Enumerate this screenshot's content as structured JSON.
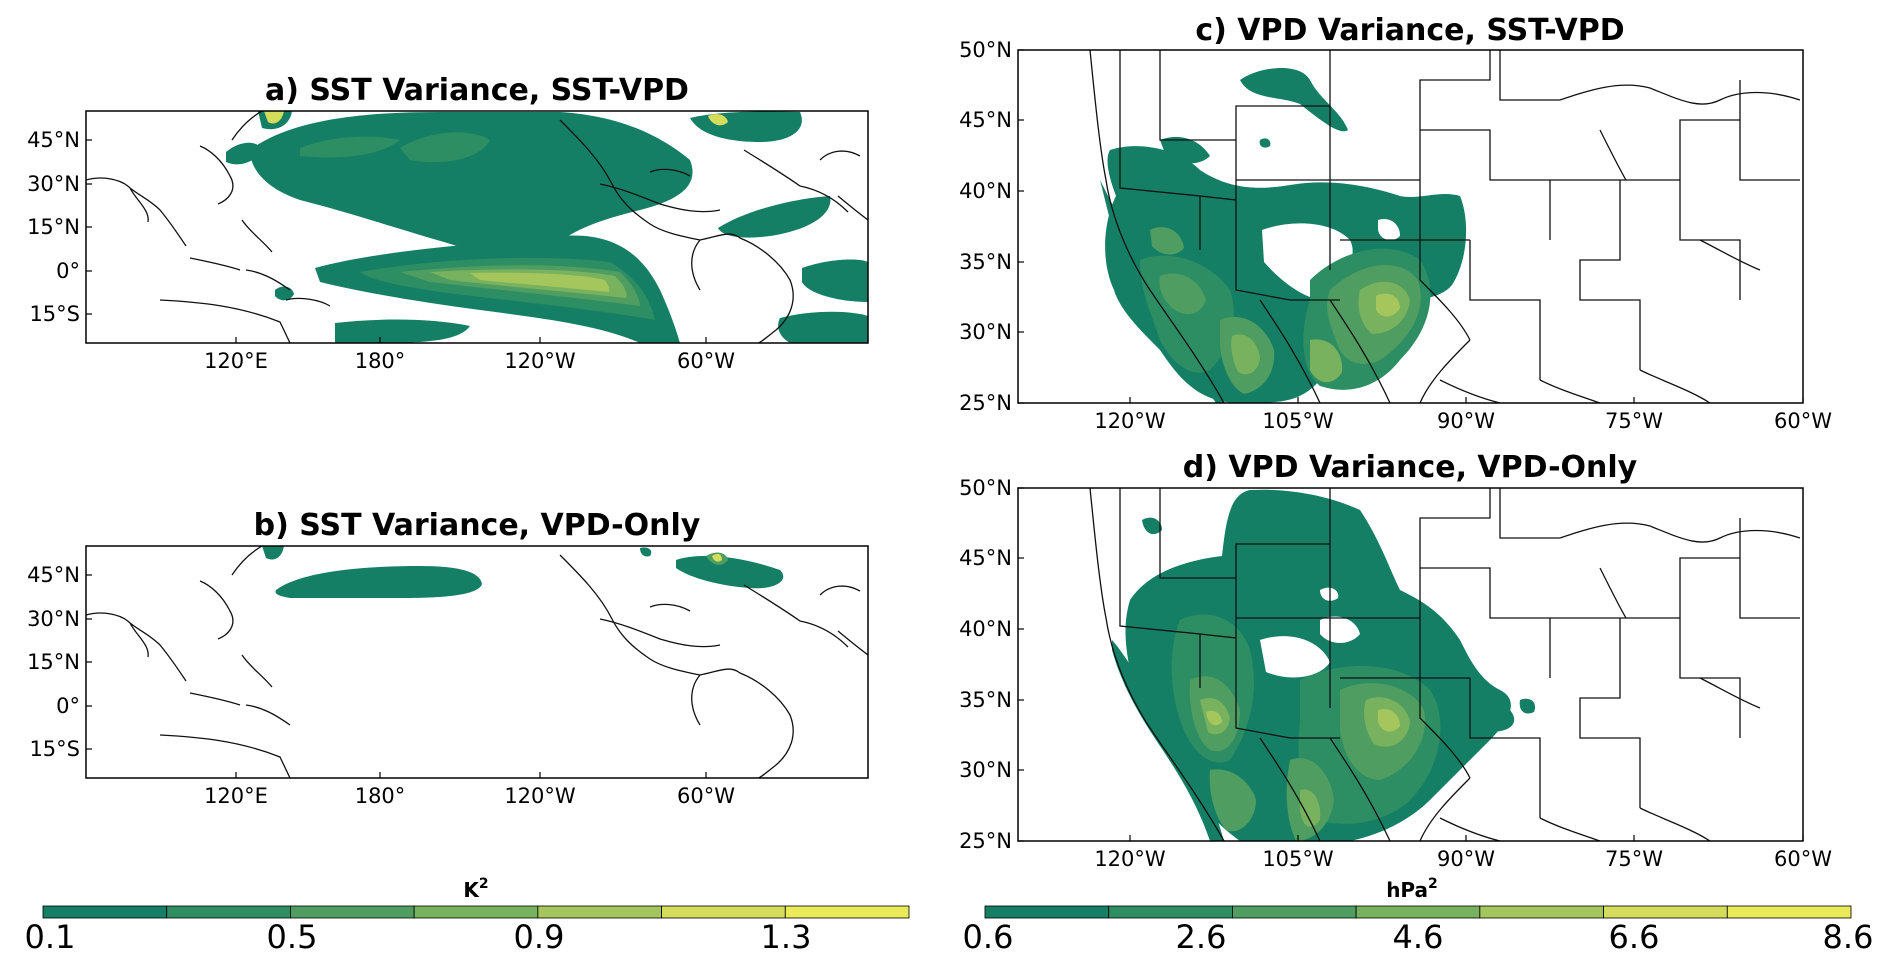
{
  "colors": {
    "levels": [
      "#157f66",
      "#2e8e63",
      "#4f9d60",
      "#79b25e",
      "#a5c65d",
      "#d3dc5b",
      "#eaea58"
    ],
    "coastline": "#111111"
  },
  "chart_data": [
    {
      "type": "map",
      "title": "a) SST Variance, SST-VPD",
      "lat_ticks": [
        "45°N",
        "30°N",
        "15°N",
        "0°",
        "15°S"
      ],
      "lon_ticks": [
        "120°E",
        "180°",
        "120°W",
        "60°W"
      ],
      "lat_range": [
        -25,
        55
      ],
      "lon_range": [
        95,
        365
      ],
      "variable": "SST variance",
      "units": "K²"
    },
    {
      "type": "map",
      "title": "b) SST Variance, VPD-Only",
      "lat_ticks": [
        "45°N",
        "30°N",
        "15°N",
        "0°",
        "15°S"
      ],
      "lon_ticks": [
        "120°E",
        "180°",
        "120°W",
        "60°W"
      ],
      "lat_range": [
        -25,
        55
      ],
      "lon_range": [
        95,
        365
      ],
      "variable": "SST variance",
      "units": "K²"
    },
    {
      "type": "map",
      "title": "c) VPD Variance, SST-VPD",
      "lat_ticks": [
        "50°N",
        "45°N",
        "40°N",
        "35°N",
        "30°N",
        "25°N"
      ],
      "lon_ticks": [
        "120°W",
        "105°W",
        "90°W",
        "75°W",
        "60°W"
      ],
      "lat_range": [
        25,
        50
      ],
      "lon_range": [
        -130,
        -60
      ],
      "variable": "VPD variance",
      "units": "hPa²"
    },
    {
      "type": "map",
      "title": "d) VPD Variance, VPD-Only",
      "lat_ticks": [
        "50°N",
        "45°N",
        "40°N",
        "35°N",
        "30°N",
        "25°N"
      ],
      "lon_ticks": [
        "120°W",
        "105°W",
        "90°W",
        "75°W",
        "60°W"
      ],
      "lat_range": [
        25,
        50
      ],
      "lon_range": [
        -130,
        -60
      ],
      "variable": "VPD variance",
      "units": "hPa²"
    }
  ],
  "colorbars": [
    {
      "units": "K",
      "units_sup": "2",
      "ticks": [
        "0.1",
        "0.5",
        "0.9",
        "1.3"
      ],
      "range": [
        0.1,
        1.5
      ]
    },
    {
      "units": "hPa",
      "units_sup": "2",
      "ticks": [
        "0.6",
        "2.6",
        "4.6",
        "6.6",
        "8.6"
      ],
      "range": [
        0.6,
        8.6
      ]
    }
  ]
}
